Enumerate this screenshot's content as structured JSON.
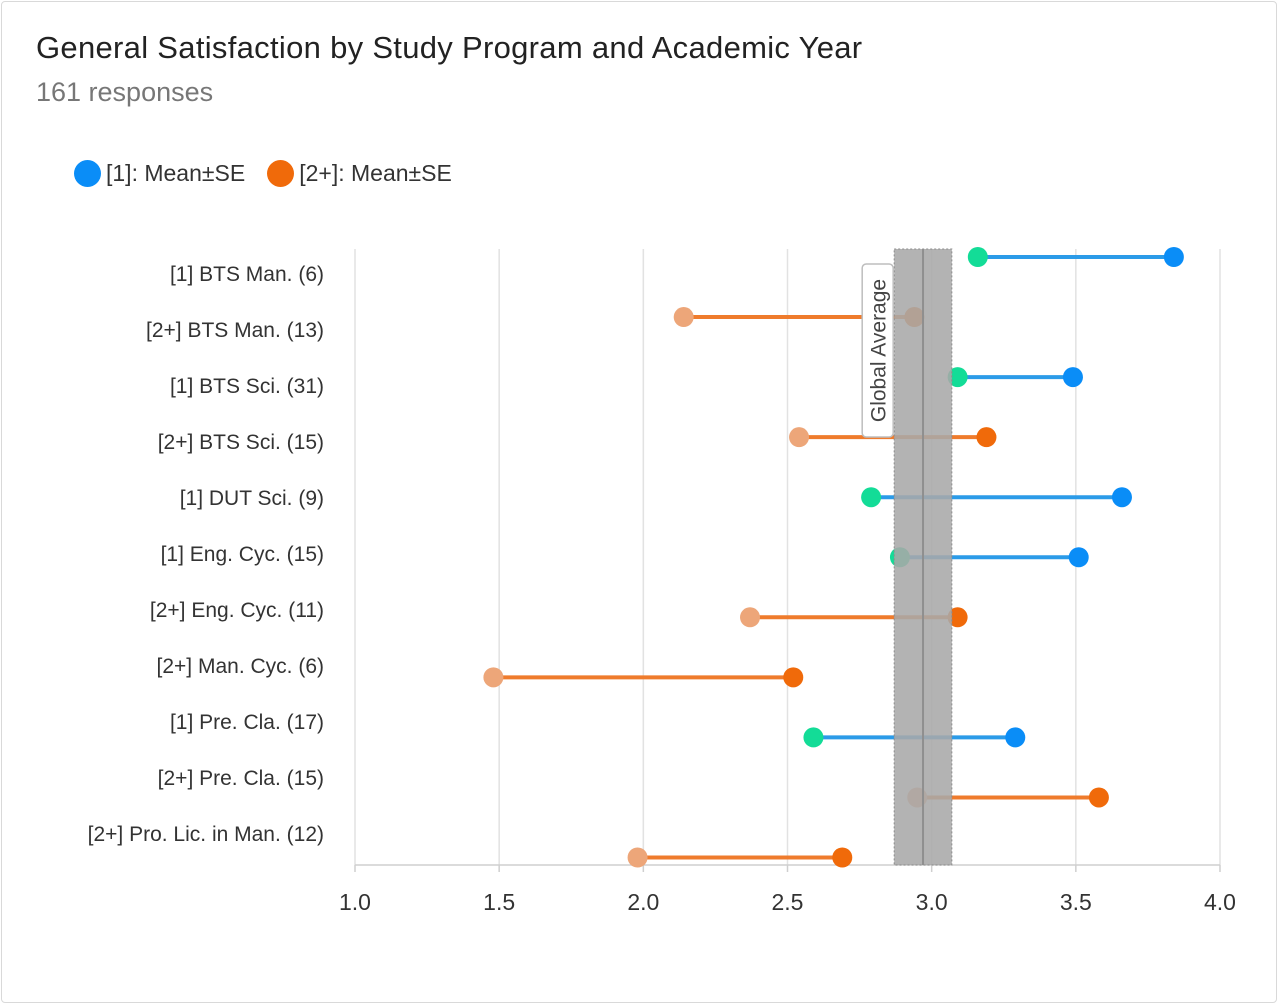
{
  "chart_title": "General Satisfaction by Study Program and Academic Year",
  "chart_subtitle": "161 responses",
  "legend": [
    {
      "label": "[1]: Mean±SE",
      "color": "#0a8df7"
    },
    {
      "label": "[2+]: Mean±SE",
      "color": "#f06a0a"
    }
  ],
  "colors": {
    "year1_line": "#2b9be8",
    "year1_high": "#0a8df7",
    "year1_low": "#13dc97",
    "year2_line": "#ef7b2c",
    "year2_high": "#f06a0a",
    "year2_low": "#eda679",
    "band": "#a8a8a8",
    "grid": "#e2e2e2"
  },
  "chart_data": {
    "type": "dumbbell",
    "title": "General Satisfaction by Study Program and Academic Year",
    "subtitle": "161 responses",
    "xlim": [
      1.0,
      4.0
    ],
    "xticks": [
      "1.0",
      "1.5",
      "2.0",
      "2.5",
      "3.0",
      "3.5",
      "4.0"
    ],
    "grid": true,
    "legend_position": "top-left",
    "categories": [
      "[1] BTS Man. (6)",
      "[2+] BTS Man. (13)",
      "[1] BTS Sci. (31)",
      "[2+] BTS Sci. (15)",
      "[1] DUT Sci. (9)",
      "[1] Eng. Cyc. (15)",
      "[2+] Eng. Cyc. (11)",
      "[2+] Man. Cyc. (6)",
      "[1] Pre. Cla. (17)",
      "[2+] Pre. Cla. (15)",
      "[2+] Pro. Lic. in Man. (12)"
    ],
    "series": [
      {
        "name": "[1]: Mean±SE",
        "group": "1",
        "rows": [
          0,
          2,
          4,
          5,
          8
        ],
        "low": [
          3.16,
          3.09,
          2.79,
          2.89,
          2.59
        ],
        "high": [
          3.84,
          3.49,
          3.66,
          3.51,
          3.29
        ]
      },
      {
        "name": "[2+]: Mean±SE",
        "group": "2+",
        "rows": [
          1,
          3,
          6,
          7,
          9,
          10
        ],
        "low": [
          2.14,
          2.54,
          2.37,
          1.48,
          2.95,
          1.98
        ],
        "high": [
          2.94,
          3.19,
          3.09,
          2.52,
          3.58,
          2.69
        ]
      }
    ],
    "global_average": {
      "label": "Global Average",
      "value": 2.97,
      "low": 2.87,
      "high": 3.07
    }
  }
}
